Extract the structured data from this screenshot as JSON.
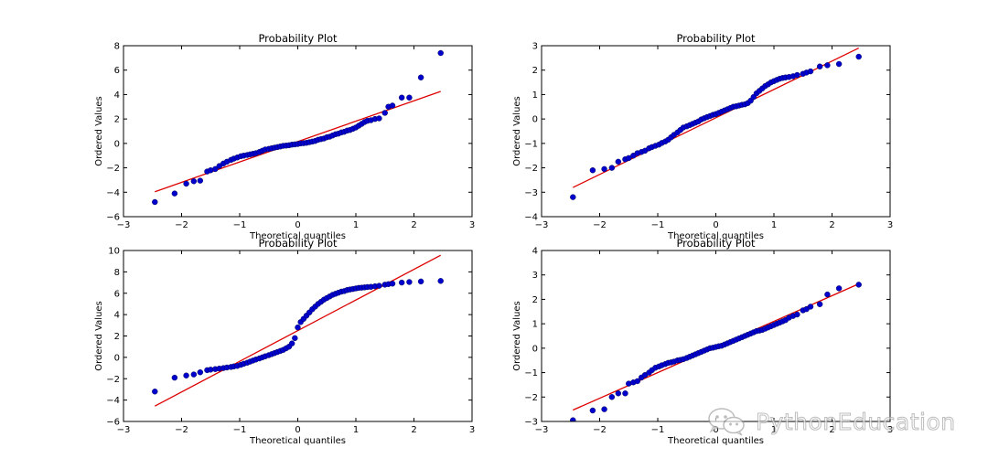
{
  "watermark": {
    "text": "PythonEducation",
    "icon": "wechat-icon"
  },
  "colors": {
    "points": "#0000cc",
    "line": "#dd0000",
    "frame": "#000000"
  },
  "chart_data": [
    {
      "type": "scatter",
      "title": "Probability Plot",
      "xlabel": "Theoretical quantiles",
      "ylabel": "Ordered Values",
      "xlim": [
        -3,
        3
      ],
      "ylim": [
        -6,
        8
      ],
      "xticks": [
        -3,
        -2,
        -1,
        0,
        1,
        2,
        3
      ],
      "yticks": [
        -6,
        -4,
        -2,
        0,
        2,
        4,
        6,
        8
      ],
      "fit_line": {
        "slope": 1.67,
        "intercept": 0.15
      },
      "points": {
        "x": [
          -2.46,
          -2.12,
          -1.92,
          -1.79,
          -1.68,
          -1.56,
          -1.5,
          -1.42,
          -1.35,
          -1.28,
          -1.22,
          -1.15,
          -1.1,
          -1.04,
          -0.98,
          -0.93,
          -0.87,
          -0.82,
          -0.77,
          -0.72,
          -0.66,
          -0.61,
          -0.56,
          -0.5,
          -0.45,
          -0.4,
          -0.35,
          -0.3,
          -0.25,
          -0.2,
          -0.15,
          -0.1,
          -0.05,
          0,
          0.05,
          0.1,
          0.15,
          0.2,
          0.25,
          0.3,
          0.35,
          0.4,
          0.45,
          0.5,
          0.55,
          0.6,
          0.65,
          0.7,
          0.75,
          0.8,
          0.85,
          0.9,
          0.95,
          1,
          1.05,
          1.1,
          1.15,
          1.2,
          1.26,
          1.33,
          1.4,
          1.5,
          1.56,
          1.63,
          1.79,
          1.92,
          2.12,
          2.46
        ],
        "y": [
          -4.8,
          -4.1,
          -3.3,
          -3.1,
          -3.05,
          -2.3,
          -2.2,
          -2.1,
          -1.85,
          -1.65,
          -1.5,
          -1.35,
          -1.25,
          -1.15,
          -1.05,
          -1.0,
          -0.95,
          -0.9,
          -0.85,
          -0.8,
          -0.7,
          -0.6,
          -0.5,
          -0.45,
          -0.4,
          -0.35,
          -0.3,
          -0.25,
          -0.2,
          -0.18,
          -0.15,
          -0.1,
          -0.08,
          -0.05,
          0,
          0.02,
          0.05,
          0.1,
          0.15,
          0.2,
          0.3,
          0.35,
          0.4,
          0.5,
          0.55,
          0.65,
          0.75,
          0.8,
          0.9,
          0.95,
          1.05,
          1.1,
          1.2,
          1.3,
          1.45,
          1.6,
          1.75,
          1.85,
          1.9,
          2.0,
          2.05,
          2.5,
          3.0,
          3.1,
          3.75,
          3.75,
          5.4,
          7.4
        ]
      }
    },
    {
      "type": "scatter",
      "title": "Probability Plot",
      "xlabel": "Theoretical quantiles",
      "ylabel": "Ordered Values",
      "xlim": [
        -3,
        3
      ],
      "ylim": [
        -4,
        3
      ],
      "xticks": [
        -3,
        -2,
        -1,
        0,
        1,
        2,
        3
      ],
      "yticks": [
        -4,
        -3,
        -2,
        -1,
        0,
        1,
        2,
        3
      ],
      "fit_line": {
        "slope": 1.16,
        "intercept": 0.05
      },
      "points": {
        "x": [
          -2.46,
          -2.12,
          -1.92,
          -1.79,
          -1.68,
          -1.56,
          -1.5,
          -1.42,
          -1.35,
          -1.28,
          -1.22,
          -1.15,
          -1.1,
          -1.04,
          -0.98,
          -0.93,
          -0.87,
          -0.82,
          -0.77,
          -0.72,
          -0.66,
          -0.61,
          -0.56,
          -0.5,
          -0.45,
          -0.4,
          -0.35,
          -0.3,
          -0.25,
          -0.2,
          -0.15,
          -0.1,
          -0.05,
          0,
          0.05,
          0.1,
          0.15,
          0.2,
          0.25,
          0.3,
          0.35,
          0.4,
          0.45,
          0.5,
          0.55,
          0.6,
          0.65,
          0.7,
          0.75,
          0.8,
          0.85,
          0.9,
          0.95,
          1,
          1.05,
          1.1,
          1.15,
          1.2,
          1.26,
          1.33,
          1.4,
          1.5,
          1.56,
          1.63,
          1.79,
          1.92,
          2.12,
          2.46
        ],
        "y": [
          -3.2,
          -2.1,
          -2.05,
          -2.0,
          -1.75,
          -1.65,
          -1.6,
          -1.5,
          -1.4,
          -1.35,
          -1.3,
          -1.2,
          -1.15,
          -1.1,
          -1.05,
          -0.98,
          -0.92,
          -0.85,
          -0.75,
          -0.65,
          -0.55,
          -0.45,
          -0.35,
          -0.3,
          -0.25,
          -0.2,
          -0.15,
          -0.1,
          -0.02,
          0.03,
          0.08,
          0.12,
          0.17,
          0.2,
          0.25,
          0.3,
          0.35,
          0.4,
          0.45,
          0.5,
          0.52,
          0.55,
          0.58,
          0.6,
          0.65,
          0.75,
          0.9,
          1.05,
          1.15,
          1.25,
          1.35,
          1.42,
          1.5,
          1.55,
          1.6,
          1.65,
          1.68,
          1.7,
          1.72,
          1.75,
          1.8,
          1.85,
          1.9,
          1.95,
          2.15,
          2.2,
          2.25,
          2.55
        ]
      }
    },
    {
      "type": "scatter",
      "title": "Probability Plot",
      "xlabel": "Theoretical quantiles",
      "ylabel": "Ordered Values",
      "xlim": [
        -3,
        3
      ],
      "ylim": [
        -6,
        10
      ],
      "xticks": [
        -3,
        -2,
        -1,
        0,
        1,
        2,
        3
      ],
      "yticks": [
        -6,
        -4,
        -2,
        0,
        2,
        4,
        6,
        8,
        10
      ],
      "fit_line": {
        "slope": 2.87,
        "intercept": 2.5
      },
      "points": {
        "x": [
          -2.46,
          -2.12,
          -1.92,
          -1.79,
          -1.68,
          -1.56,
          -1.5,
          -1.42,
          -1.35,
          -1.28,
          -1.22,
          -1.15,
          -1.1,
          -1.04,
          -0.98,
          -0.93,
          -0.87,
          -0.82,
          -0.77,
          -0.72,
          -0.66,
          -0.61,
          -0.56,
          -0.5,
          -0.45,
          -0.4,
          -0.35,
          -0.3,
          -0.25,
          -0.2,
          -0.15,
          -0.1,
          -0.05,
          0,
          0.05,
          0.1,
          0.15,
          0.2,
          0.25,
          0.3,
          0.35,
          0.4,
          0.45,
          0.5,
          0.55,
          0.6,
          0.65,
          0.7,
          0.75,
          0.8,
          0.85,
          0.9,
          0.95,
          1,
          1.05,
          1.1,
          1.15,
          1.2,
          1.26,
          1.33,
          1.4,
          1.5,
          1.56,
          1.63,
          1.79,
          1.92,
          2.12,
          2.46
        ],
        "y": [
          -3.2,
          -1.9,
          -1.7,
          -1.6,
          -1.4,
          -1.2,
          -1.15,
          -1.1,
          -1.05,
          -1.0,
          -0.95,
          -0.9,
          -0.85,
          -0.8,
          -0.7,
          -0.6,
          -0.5,
          -0.4,
          -0.3,
          -0.2,
          -0.1,
          0.0,
          0.1,
          0.2,
          0.3,
          0.4,
          0.5,
          0.6,
          0.7,
          0.85,
          1.0,
          1.3,
          1.8,
          2.8,
          3.3,
          3.6,
          3.9,
          4.2,
          4.5,
          4.75,
          5.0,
          5.2,
          5.4,
          5.55,
          5.7,
          5.85,
          5.95,
          6.05,
          6.15,
          6.2,
          6.3,
          6.35,
          6.4,
          6.45,
          6.5,
          6.52,
          6.55,
          6.58,
          6.6,
          6.65,
          6.7,
          6.8,
          6.85,
          6.9,
          7.0,
          7.05,
          7.1,
          7.15
        ]
      }
    },
    {
      "type": "scatter",
      "title": "Probability Plot",
      "xlabel": "Theoretical quantiles",
      "ylabel": "Ordered Values",
      "xlim": [
        -3,
        3
      ],
      "ylim": [
        -3,
        4
      ],
      "xticks": [
        -3,
        -2,
        -1,
        0,
        1,
        2,
        3
      ],
      "yticks": [
        -3,
        -2,
        -1,
        0,
        1,
        2,
        3,
        4
      ],
      "fit_line": {
        "slope": 1.05,
        "intercept": 0.05
      },
      "points": {
        "x": [
          -2.46,
          -2.12,
          -1.92,
          -1.79,
          -1.68,
          -1.56,
          -1.5,
          -1.42,
          -1.35,
          -1.28,
          -1.22,
          -1.15,
          -1.1,
          -1.04,
          -0.98,
          -0.93,
          -0.87,
          -0.82,
          -0.77,
          -0.72,
          -0.66,
          -0.61,
          -0.56,
          -0.5,
          -0.45,
          -0.4,
          -0.35,
          -0.3,
          -0.25,
          -0.2,
          -0.15,
          -0.1,
          -0.05,
          0,
          0.05,
          0.1,
          0.15,
          0.2,
          0.25,
          0.3,
          0.35,
          0.4,
          0.45,
          0.5,
          0.55,
          0.6,
          0.65,
          0.7,
          0.75,
          0.8,
          0.85,
          0.9,
          0.95,
          1,
          1.05,
          1.1,
          1.15,
          1.2,
          1.26,
          1.33,
          1.4,
          1.5,
          1.56,
          1.63,
          1.79,
          1.92,
          2.12,
          2.46
        ],
        "y": [
          -2.95,
          -2.55,
          -2.5,
          -2.0,
          -1.85,
          -1.85,
          -1.45,
          -1.4,
          -1.35,
          -1.2,
          -1.1,
          -1.0,
          -0.9,
          -0.8,
          -0.75,
          -0.7,
          -0.65,
          -0.6,
          -0.58,
          -0.55,
          -0.5,
          -0.48,
          -0.45,
          -0.4,
          -0.35,
          -0.3,
          -0.25,
          -0.2,
          -0.15,
          -0.1,
          -0.05,
          0.0,
          0.02,
          0.05,
          0.08,
          0.1,
          0.15,
          0.2,
          0.25,
          0.3,
          0.35,
          0.4,
          0.45,
          0.5,
          0.55,
          0.6,
          0.65,
          0.7,
          0.72,
          0.75,
          0.8,
          0.85,
          0.9,
          0.95,
          1.0,
          1.05,
          1.1,
          1.15,
          1.25,
          1.32,
          1.38,
          1.55,
          1.6,
          1.7,
          1.8,
          2.2,
          2.45,
          2.6
        ]
      }
    }
  ]
}
